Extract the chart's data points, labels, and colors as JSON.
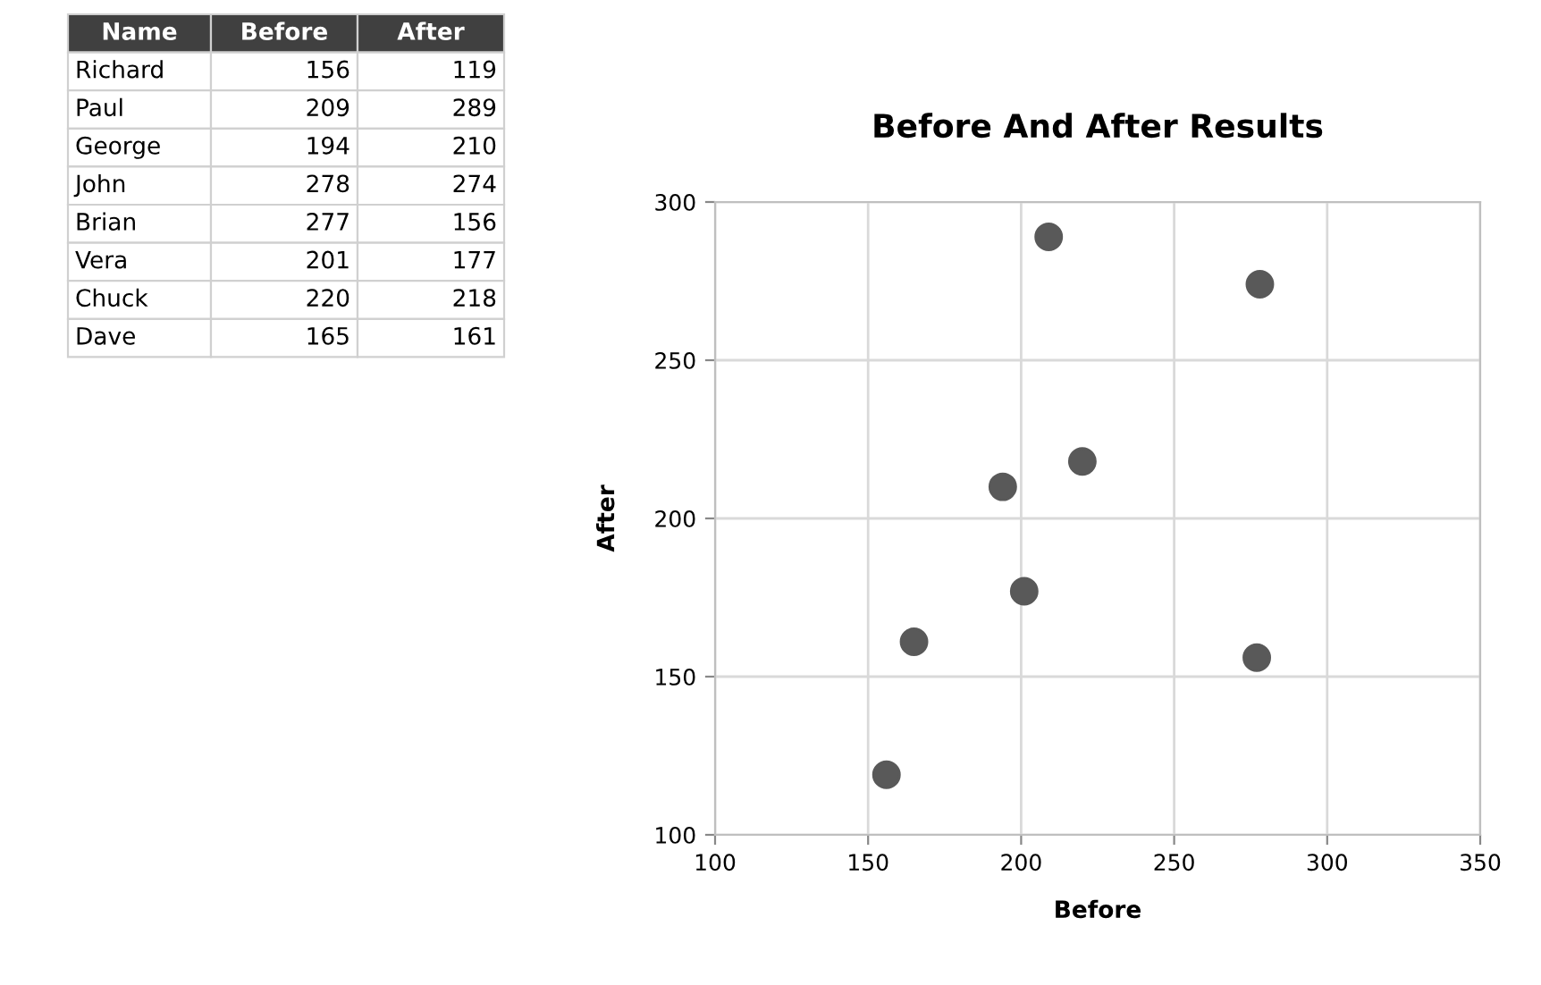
{
  "chart_data": [
    {
      "type": "other",
      "annotations": [
        "Name"
      ],
      "categories": [
        "Richard",
        "Paul",
        "George",
        "John",
        "Brian",
        "Vera",
        "Chuck",
        "Dave"
      ],
      "series": [
        {
          "name": "Before",
          "values": [
            156,
            209,
            194,
            278,
            277,
            201,
            220,
            165
          ]
        },
        {
          "name": "After",
          "values": [
            119,
            289,
            210,
            274,
            156,
            177,
            218,
            161
          ]
        }
      ],
      "data_labels": true
    },
    {
      "type": "scatter",
      "title": "Before And After Results",
      "xlabel": "Before",
      "ylabel": "After",
      "x": [
        156,
        209,
        194,
        278,
        277,
        201,
        220,
        165
      ],
      "series": [
        {
          "color": "#595959",
          "values": [
            119,
            289,
            210,
            274,
            156,
            177,
            218,
            161
          ]
        }
      ],
      "xlim": [
        100,
        350
      ],
      "xticks": [
        100,
        150,
        200,
        250,
        300,
        350
      ],
      "ylim": [
        100,
        300
      ],
      "yticks": [
        100,
        150,
        200,
        250,
        300
      ],
      "grid": true,
      "marker": "circle"
    }
  ]
}
